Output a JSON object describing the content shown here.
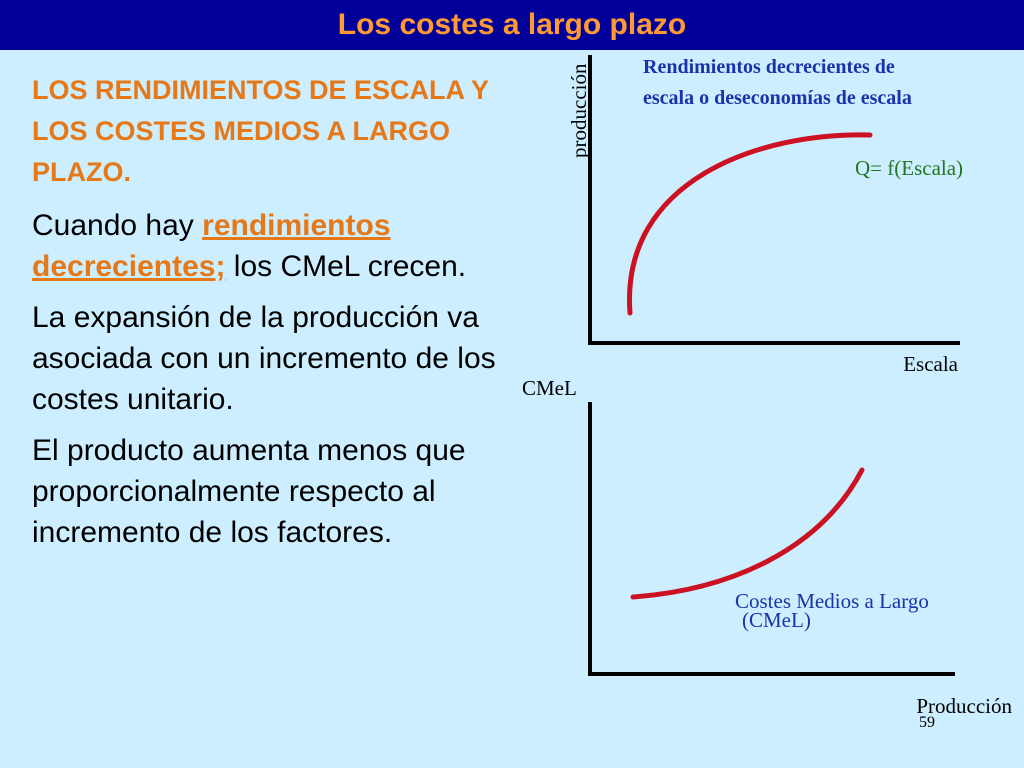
{
  "header": {
    "title": "Los costes a largo plazo"
  },
  "text": {
    "heading": "LOS RENDIMIENTOS DE ESCALA Y LOS COSTES MEDIOS A LARGO PLAZO.",
    "p1_before": "Cuando hay ",
    "p1_highlight": "rendimientos decrecientes;",
    "p1_after": " los CMeL crecen.",
    "p2": "La expansión de la producción va asociada con un incremento de los costes unitario.",
    "p3": "El producto aumenta menos que proporcionalmente respecto al incremento de los factores."
  },
  "top_diagram": {
    "y_axis_label": "producción",
    "x_axis_label": "Escala",
    "title_line1": "Rendimientos decrecientes de",
    "title_line2": "escala o deseconomías de escala",
    "curve_label": "Q= f(Escala)"
  },
  "bottom_diagram": {
    "y_axis_label": "CMeL",
    "x_axis_label": "Producción",
    "curve_label_line1": "Costes Medios a Largo",
    "curve_label_line2": "(CMeL)"
  },
  "slide_number": "59",
  "colors": {
    "background": "#cceeff",
    "header": "#000099",
    "accent": "#e67817",
    "curve": "#cc1122",
    "label_blue": "#1a33aa",
    "label_green": "#227722"
  }
}
